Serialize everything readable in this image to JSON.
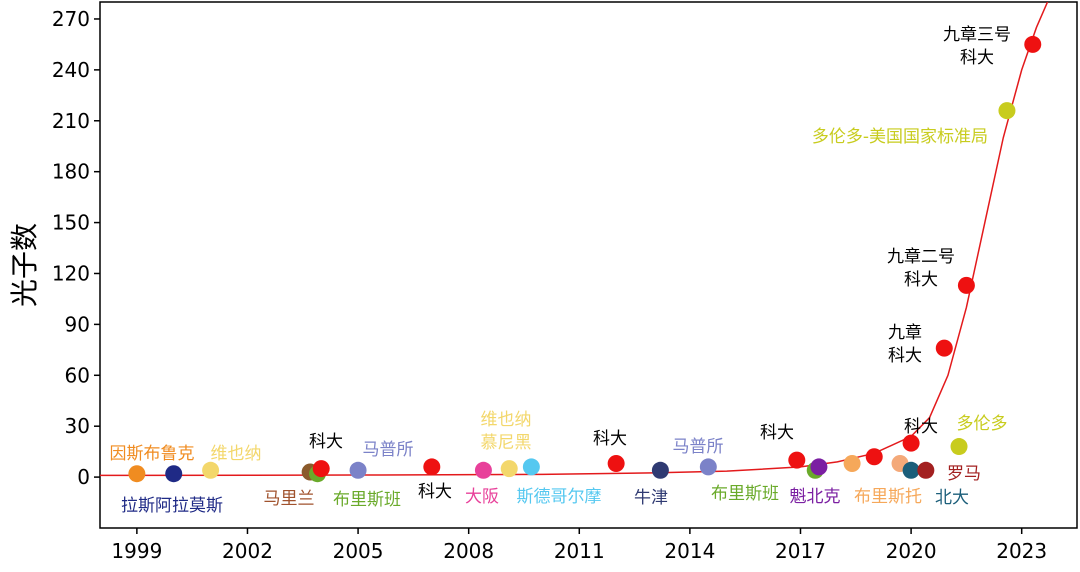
{
  "chart_data": {
    "type": "scatter",
    "y_label": "光子数",
    "xlim": [
      1998.0,
      2024.5
    ],
    "xticks": [
      1999,
      2002,
      2005,
      2008,
      2011,
      2014,
      2017,
      2020,
      2023
    ],
    "ylim": [
      -30,
      280
    ],
    "yticks": [
      0,
      30,
      60,
      90,
      120,
      150,
      180,
      210,
      240,
      270
    ],
    "x": [
      1999.0,
      2000.0,
      2001.0,
      2003.7,
      2003.9,
      2004.0,
      2005.0,
      2007.0,
      2008.4,
      2009.1,
      2009.7,
      2012.0,
      2013.2,
      2014.5,
      2016.9,
      2017.4,
      2017.5,
      2018.4,
      2019.0,
      2019.7,
      2020.0,
      2020.0,
      2020.4,
      2021.3,
      2020.9,
      2021.5,
      2022.6,
      2023.3
    ],
    "values": [
      2,
      2,
      4,
      3,
      2,
      5,
      4,
      6,
      4,
      5,
      6,
      8,
      4,
      6,
      10,
      4,
      6,
      8,
      12,
      8,
      20,
      4,
      4,
      18,
      76,
      113,
      216,
      255
    ],
    "colors": [
      "#f08c21",
      "#1f2a86",
      "#f3d76b",
      "#8b5a2b",
      "#6aaa2a",
      "#ee1111",
      "#7b82c8",
      "#ee1111",
      "#e8409a",
      "#f3d76b",
      "#55c8f0",
      "#ee1111",
      "#2f3a72",
      "#7b82c8",
      "#ee1111",
      "#6aaa2a",
      "#7b1fa2",
      "#f6a85a",
      "#ee1111",
      "#f4a979",
      "#ee1111",
      "#1b5e7a",
      "#a32020",
      "#c8cc1e",
      "#ee1111",
      "#ee1111",
      "#c8cc1e",
      "#ee1111"
    ],
    "labels": [
      [
        "因斯布鲁克"
      ],
      [
        "拉斯阿拉莫斯"
      ],
      [
        "维也纳"
      ],
      [
        "马里兰"
      ],
      [
        "布里斯班"
      ],
      [
        "科大"
      ],
      [
        "马普所"
      ],
      [
        "科大"
      ],
      [
        "大阪"
      ],
      [
        "维也纳",
        "慕尼黑"
      ],
      [
        "斯德哥尔摩"
      ],
      [
        "科大"
      ],
      [
        "牛津"
      ],
      [
        "马普所"
      ],
      [
        "科大"
      ],
      [
        "布里斯班"
      ],
      [
        "魁北克"
      ],
      [
        "布里斯托"
      ],
      null,
      null,
      [
        "科大"
      ],
      [
        "北大"
      ],
      [
        "罗马"
      ],
      [
        "多伦多"
      ],
      [
        "九章",
        "科大"
      ],
      [
        "九章二号",
        "科大"
      ],
      [
        "多伦多-美国国家标准局"
      ],
      [
        "九章三号",
        "科大"
      ]
    ],
    "label_colors": [
      "#f08c21",
      "#1f2a86",
      "#f3d76b",
      "#a0522d",
      "#6aaa2a",
      "#000000",
      "#7b82c8",
      "#000000",
      "#e8409a",
      "#f3d76b",
      "#55c8f0",
      "#000000",
      "#2f3a72",
      "#7b82c8",
      "#000000",
      "#6aaa2a",
      "#7b1fa2",
      "#f6a85a",
      null,
      null,
      "#000000",
      "#1b5e7a",
      "#a32020",
      "#c8cc1e",
      "#000000",
      "#000000",
      "#c8cc1e",
      "#000000"
    ],
    "fit": {
      "color": "#e31a1c",
      "x": [
        1998.0,
        2005,
        2010,
        2013,
        2015,
        2017,
        2018,
        2019,
        2020,
        2020.5,
        2021,
        2021.5,
        2022,
        2022.5,
        2023,
        2023.4,
        2023.7
      ],
      "values": [
        1,
        1.2,
        1.6,
        2.5,
        3.5,
        6,
        9,
        14,
        24,
        35,
        60,
        100,
        150,
        200,
        240,
        265,
        280
      ]
    }
  }
}
